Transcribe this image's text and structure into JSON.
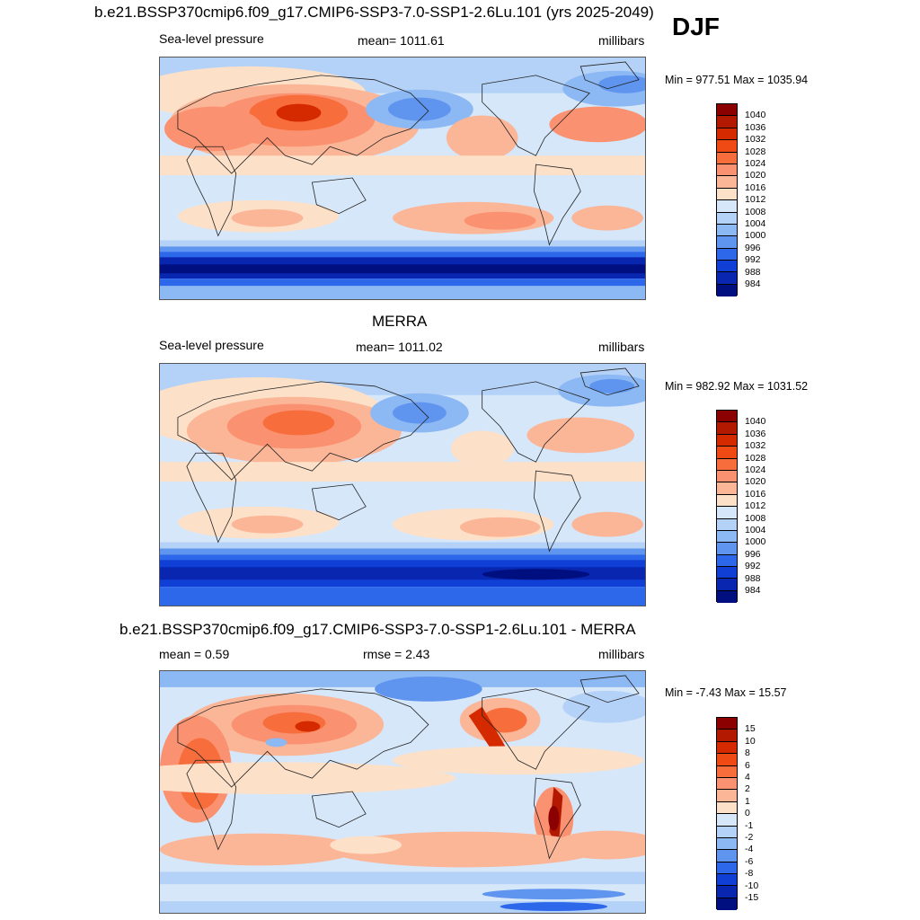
{
  "season": "DJF",
  "panels": [
    {
      "title": "b.e21.BSSP370cmip6.f09_g17.CMIP6-SSP3-7.0-SSP1-2.6Lu.101 (yrs 2025-2049)",
      "left_label": "Sea-level pressure",
      "center_label": "mean= 1011.61",
      "right_label": "millibars",
      "minmax": "Min = 977.51 Max = 1035.94",
      "map_kind": "model"
    },
    {
      "title": "MERRA",
      "left_label": "Sea-level pressure",
      "center_label": "mean= 1011.02",
      "right_label": "millibars",
      "minmax": "Min = 982.92 Max = 1031.52",
      "map_kind": "obs"
    },
    {
      "title": "b.e21.BSSP370cmip6.f09_g17.CMIP6-SSP3-7.0-SSP1-2.6Lu.101 - MERRA",
      "left_label": "mean =   0.59",
      "center_label": "rmse =   2.43",
      "right_label": "millibars",
      "minmax": "Min =  -7.43 Max =  15.57",
      "map_kind": "diff"
    }
  ],
  "colorbar_abs": {
    "labels": [
      "1040",
      "1036",
      "1032",
      "1028",
      "1024",
      "1020",
      "1016",
      "1012",
      "1008",
      "1004",
      "1000",
      "996",
      "992",
      "988",
      "984"
    ],
    "colors": [
      "#8b0000",
      "#b31800",
      "#d52a00",
      "#ef4a14",
      "#f76e3c",
      "#fa9170",
      "#fbb597",
      "#fde0c8",
      "#d6e7fa",
      "#b4d2f7",
      "#8cb8f3",
      "#5f95ef",
      "#2d68eb",
      "#0f3fd4",
      "#0826b0",
      "#000f80"
    ]
  },
  "colorbar_diff": {
    "labels": [
      "15",
      "10",
      "8",
      "6",
      "4",
      "2",
      "1",
      "0",
      "-1",
      "-2",
      "-4",
      "-6",
      "-8",
      "-10",
      "-15"
    ],
    "colors": [
      "#8b0000",
      "#b31800",
      "#d52a00",
      "#ef4a14",
      "#f76e3c",
      "#fa9170",
      "#fbb597",
      "#fde0c8",
      "#d6e7fa",
      "#b4d2f7",
      "#8cb8f3",
      "#5f95ef",
      "#2d68eb",
      "#0f3fd4",
      "#0826b0",
      "#000f80"
    ]
  }
}
